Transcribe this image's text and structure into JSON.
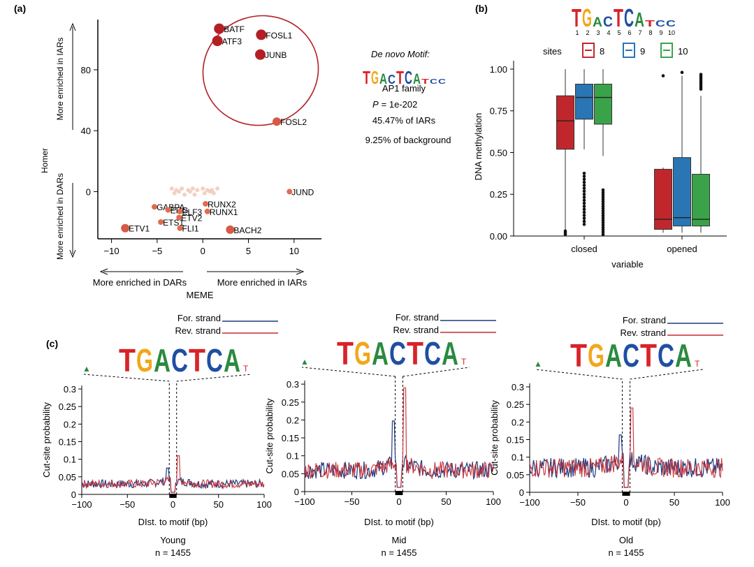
{
  "panel_labels": {
    "a": "(a)",
    "b": "(b)",
    "c": "(c)"
  },
  "colors": {
    "red": "#c0272d",
    "blue": "#2a75b3",
    "green": "#3aa34a",
    "dark_red": "#b31f24",
    "salmon": "#e06b4f",
    "navy": "#1f3a7a",
    "line_red": "#c62a33"
  },
  "motif_seq": [
    "T",
    "G",
    "A",
    "C",
    "T",
    "C",
    "A"
  ],
  "chart_data": [
    {
      "id": "a",
      "type": "scatter",
      "xlabel": "MEME",
      "ylabel": "Homer",
      "xlim": [
        -11.5,
        13
      ],
      "ylim": [
        -31,
        113
      ],
      "xticks": [
        -10,
        -5,
        0,
        5,
        10
      ],
      "yticks": [
        0,
        40,
        80
      ],
      "x_left_note": "More enriched in DARs",
      "x_right_note": "More enriched in IARs",
      "y_up_note": "More enriched in IARs",
      "y_down_note": "More enriched in DARs",
      "points": [
        {
          "label": "BATF",
          "x": 1.8,
          "y": 107,
          "size": "large"
        },
        {
          "label": "FOSL1",
          "x": 6.4,
          "y": 103,
          "size": "large"
        },
        {
          "label": "ATF3",
          "x": 1.6,
          "y": 99,
          "size": "large"
        },
        {
          "label": "JUNB",
          "x": 6.3,
          "y": 90,
          "size": "large"
        },
        {
          "label": "FOSL2",
          "x": 8.1,
          "y": 46,
          "size": "medium"
        },
        {
          "label": "JUND",
          "x": 9.5,
          "y": 0,
          "size": "small"
        },
        {
          "label": "RUNX2",
          "x": 0.3,
          "y": -8,
          "size": "small"
        },
        {
          "label": "RUNX1",
          "x": 0.5,
          "y": -13,
          "size": "small"
        },
        {
          "label": "GABPA",
          "x": -5.3,
          "y": -10,
          "size": "small"
        },
        {
          "label": "ERG",
          "x": -3.8,
          "y": -12,
          "size": "small"
        },
        {
          "label": "ELF3",
          "x": -2.5,
          "y": -13,
          "size": "small"
        },
        {
          "label": "ETV2",
          "x": -2.6,
          "y": -17,
          "size": "small"
        },
        {
          "label": "ETS1",
          "x": -4.6,
          "y": -20,
          "size": "small"
        },
        {
          "label": "FLI1",
          "x": -2.5,
          "y": -24,
          "size": "small"
        },
        {
          "label": "ETV1",
          "x": -8.5,
          "y": -24,
          "size": "medium"
        },
        {
          "label": "BACH2",
          "x": 3.0,
          "y": -25,
          "size": "medium"
        }
      ],
      "faint_points": [
        [
          -3.4,
          2
        ],
        [
          -2.9,
          1
        ],
        [
          -2.3,
          2
        ],
        [
          -1.6,
          1
        ],
        [
          -1.1,
          2
        ],
        [
          -0.6,
          1
        ],
        [
          0.0,
          2
        ],
        [
          0.5,
          1
        ],
        [
          1.0,
          1
        ],
        [
          1.6,
          2
        ],
        [
          -3.1,
          -1
        ],
        [
          -2.0,
          -2
        ],
        [
          -0.9,
          -2
        ],
        [
          0.2,
          -1
        ],
        [
          1.2,
          -1
        ],
        [
          -1.4,
          0
        ],
        [
          0.8,
          0
        ],
        [
          -2.6,
          0
        ]
      ],
      "annotation": {
        "title": "De novo Motif:",
        "family": "AP1 family",
        "p_label": "P",
        "p_value": "= 1e-202",
        "pct_iars": "45.47% of IARs",
        "pct_bg": "9.25% of background"
      }
    },
    {
      "id": "b",
      "type": "boxplot",
      "xlabel": "variable",
      "ylabel": "DNA methylation",
      "ylim": [
        0,
        1.05
      ],
      "yticks": [
        0.0,
        0.25,
        0.5,
        0.75,
        1.0
      ],
      "ytick_labels": [
        "0.00",
        "0.25",
        "0.50",
        "0.75",
        "1.00"
      ],
      "legend_title": "sites",
      "legend_position": "top",
      "motif_positions": [
        "1",
        "2",
        "3",
        "4",
        "5",
        "6",
        "7",
        "8",
        "9",
        "10"
      ],
      "categories": [
        "closed",
        "opened"
      ],
      "series": [
        {
          "name": "8",
          "boxes": [
            {
              "min": 0.01,
              "q1": 0.52,
              "median": 0.69,
              "q3": 0.84,
              "max": 1.0
            },
            {
              "min": 0.02,
              "q1": 0.04,
              "median": 0.1,
              "q3": 0.4,
              "max": 0.41
            }
          ]
        },
        {
          "name": "9",
          "boxes": [
            {
              "min": 0.52,
              "q1": 0.7,
              "median": 0.83,
              "q3": 0.91,
              "max": 1.0
            },
            {
              "min": 0.02,
              "q1": 0.06,
              "median": 0.11,
              "q3": 0.47,
              "max": 0.96
            }
          ]
        },
        {
          "name": "10",
          "boxes": [
            {
              "min": 0.48,
              "q1": 0.67,
              "median": 0.83,
              "q3": 0.91,
              "max": 1.0
            },
            {
              "min": 0.02,
              "q1": 0.06,
              "median": 0.1,
              "q3": 0.37,
              "max": 0.84
            }
          ]
        }
      ]
    },
    {
      "id": "c1",
      "type": "line",
      "xlabel": "DIst. to motif (bp)",
      "ylabel": "Cut-site probability",
      "group": "Young",
      "n": "n = 1455",
      "xlim": [
        -100,
        100
      ],
      "ylim": [
        0,
        0.31
      ],
      "xticks": [
        -100,
        -50,
        0,
        50,
        100
      ],
      "yticks": [
        0,
        0.05,
        0.1,
        0.15,
        0.2,
        0.25,
        0.3
      ],
      "ytick_labels": [
        "0",
        "0.05",
        "0.1",
        "0.15",
        "0.2",
        "0.25",
        "0.3"
      ],
      "baseline": 0.03,
      "peak": 0.11,
      "legend": [
        "For. strand",
        "Rev. strand"
      ]
    },
    {
      "id": "c2",
      "type": "line",
      "xlabel": "DIst. to motif (bp)",
      "ylabel": "Cut-site probability",
      "group": "Mid",
      "n": "n = 1455",
      "xlim": [
        -100,
        100
      ],
      "ylim": [
        0,
        0.31
      ],
      "xticks": [
        -100,
        -50,
        0,
        50,
        100
      ],
      "yticks": [
        0,
        0.05,
        0.1,
        0.15,
        0.2,
        0.25,
        0.3
      ],
      "ytick_labels": [
        "0",
        "0.05",
        "0.1",
        "0.15",
        "0.2",
        "0.25",
        "0.3"
      ],
      "baseline": 0.06,
      "peak": 0.29,
      "legend": [
        "For. strand",
        "Rev. strand"
      ]
    },
    {
      "id": "c3",
      "type": "line",
      "xlabel": "DIst. to motif (bp)",
      "ylabel": "Cut-site probability",
      "group": "Old",
      "n": "n = 1455",
      "xlim": [
        -100,
        100
      ],
      "ylim": [
        0,
        0.31
      ],
      "xticks": [
        -100,
        -50,
        0,
        50,
        100
      ],
      "yticks": [
        0,
        0.05,
        0.1,
        0.15,
        0.2,
        0.25,
        0.3
      ],
      "ytick_labels": [
        "0",
        "0.05",
        "0.1",
        "0.15",
        "0.2",
        "0.25",
        "0.3"
      ],
      "baseline": 0.07,
      "peak": 0.24,
      "legend": [
        "For. strand",
        "Rev. strand"
      ]
    }
  ]
}
